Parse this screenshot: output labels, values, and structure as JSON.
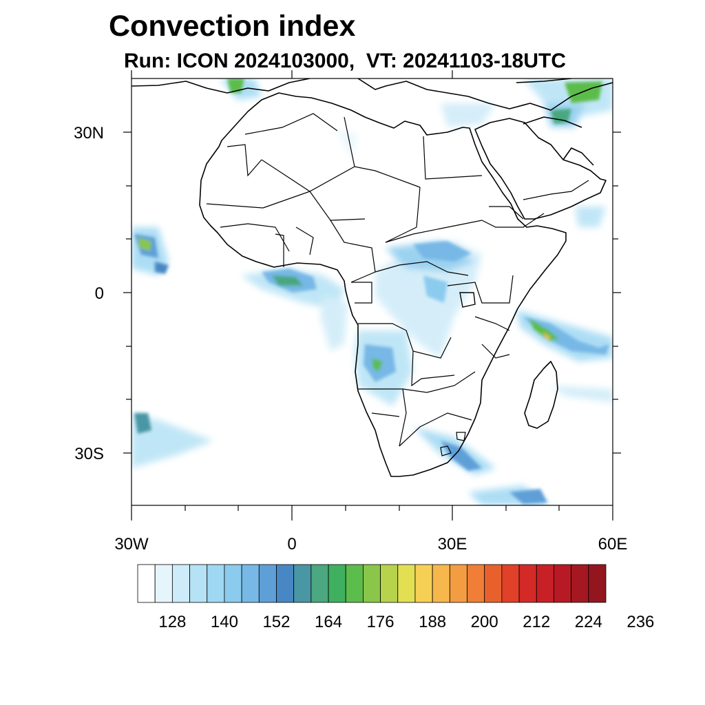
{
  "title": "Convection index",
  "subtitle": "Run: ICON 2024103000,  VT: 20241103-18UTC",
  "map": {
    "extent": {
      "lon": [
        -30,
        60
      ],
      "lat": [
        -40,
        40
      ]
    },
    "lat_labels": [
      "30N",
      "0",
      "30S"
    ],
    "lon_labels": [
      "30W",
      "0",
      "30E",
      "60E"
    ]
  },
  "colorbar": {
    "colors": [
      "#ffffff",
      "#e6f5fc",
      "#cdebf8",
      "#b5e2f5",
      "#9fd8f3",
      "#8acbee",
      "#77b8e6",
      "#5f9fd8",
      "#4887c3",
      "#4996a5",
      "#4aa77f",
      "#3fb05f",
      "#5cbc4c",
      "#8ac64a",
      "#b6d34b",
      "#e2e052",
      "#f6d054",
      "#f5b74c",
      "#f39c42",
      "#f07e36",
      "#e8612d",
      "#e04128",
      "#d42a27",
      "#c72026",
      "#b71a24",
      "#a51821",
      "#93161e"
    ],
    "tick_labels": [
      "128",
      "140",
      "152",
      "164",
      "176",
      "188",
      "200",
      "212",
      "224",
      "236"
    ]
  }
}
